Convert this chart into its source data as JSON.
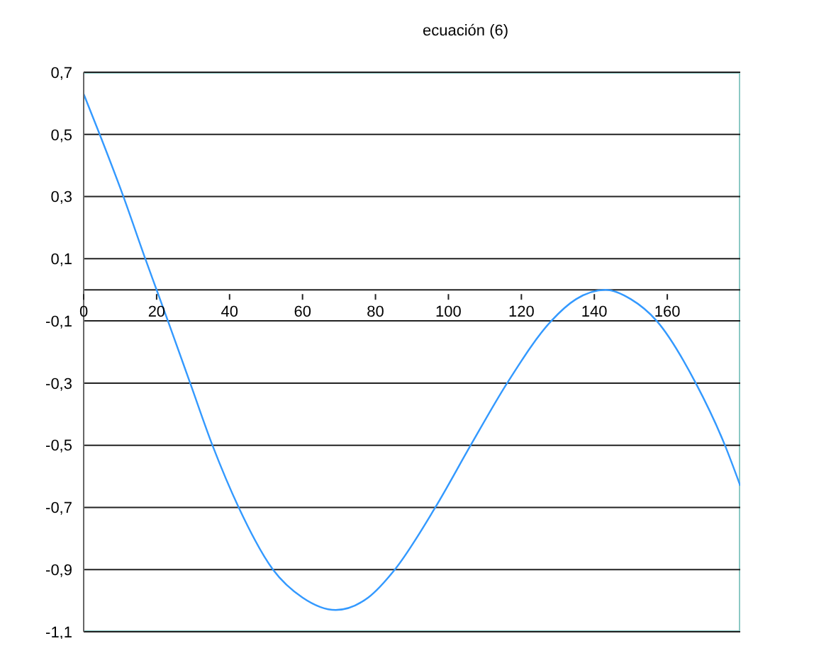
{
  "chart_data": {
    "type": "line",
    "title": "ecuación (6)",
    "x": [
      0,
      4.4,
      10.9,
      16.9,
      20,
      23.1,
      29.2,
      35.3,
      42.5,
      51.9,
      60,
      69.1,
      78,
      85.3,
      96.4,
      106.1,
      116.1,
      128.2,
      135,
      143.1,
      150,
      157.1,
      167.8,
      175.8,
      180
    ],
    "series": [
      {
        "color": "#3399ff",
        "values": [
          0.63,
          0.5,
          0.3,
          0.1,
          0,
          -0.1,
          -0.3,
          -0.5,
          -0.7,
          -0.9,
          -0.99,
          -1.03,
          -0.99,
          -0.9,
          -0.7,
          -0.5,
          -0.3,
          -0.1,
          -0.03,
          0,
          -0.03,
          -0.1,
          -0.3,
          -0.5,
          -0.63
        ]
      }
    ],
    "xlim": [
      0,
      180
    ],
    "xticks": [
      0,
      20,
      40,
      60,
      80,
      100,
      120,
      140,
      160
    ],
    "ylim": [
      -1.1,
      0.7
    ],
    "yticks": [
      {
        "value": -1.1,
        "label": "-1,1"
      },
      {
        "value": -0.9,
        "label": "-0,9"
      },
      {
        "value": -0.7,
        "label": "-0,7"
      },
      {
        "value": -0.5,
        "label": "-0,5"
      },
      {
        "value": -0.3,
        "label": "-0,3"
      },
      {
        "value": -0.1,
        "label": "-0,1"
      },
      {
        "value": 0.1,
        "label": "0,1"
      },
      {
        "value": 0.3,
        "label": "0,3"
      },
      {
        "value": 0.5,
        "label": "0,5"
      },
      {
        "value": 0.7,
        "label": "0,7"
      }
    ],
    "grid": "y",
    "marker": "none",
    "line_style": "solid",
    "legend": false
  }
}
